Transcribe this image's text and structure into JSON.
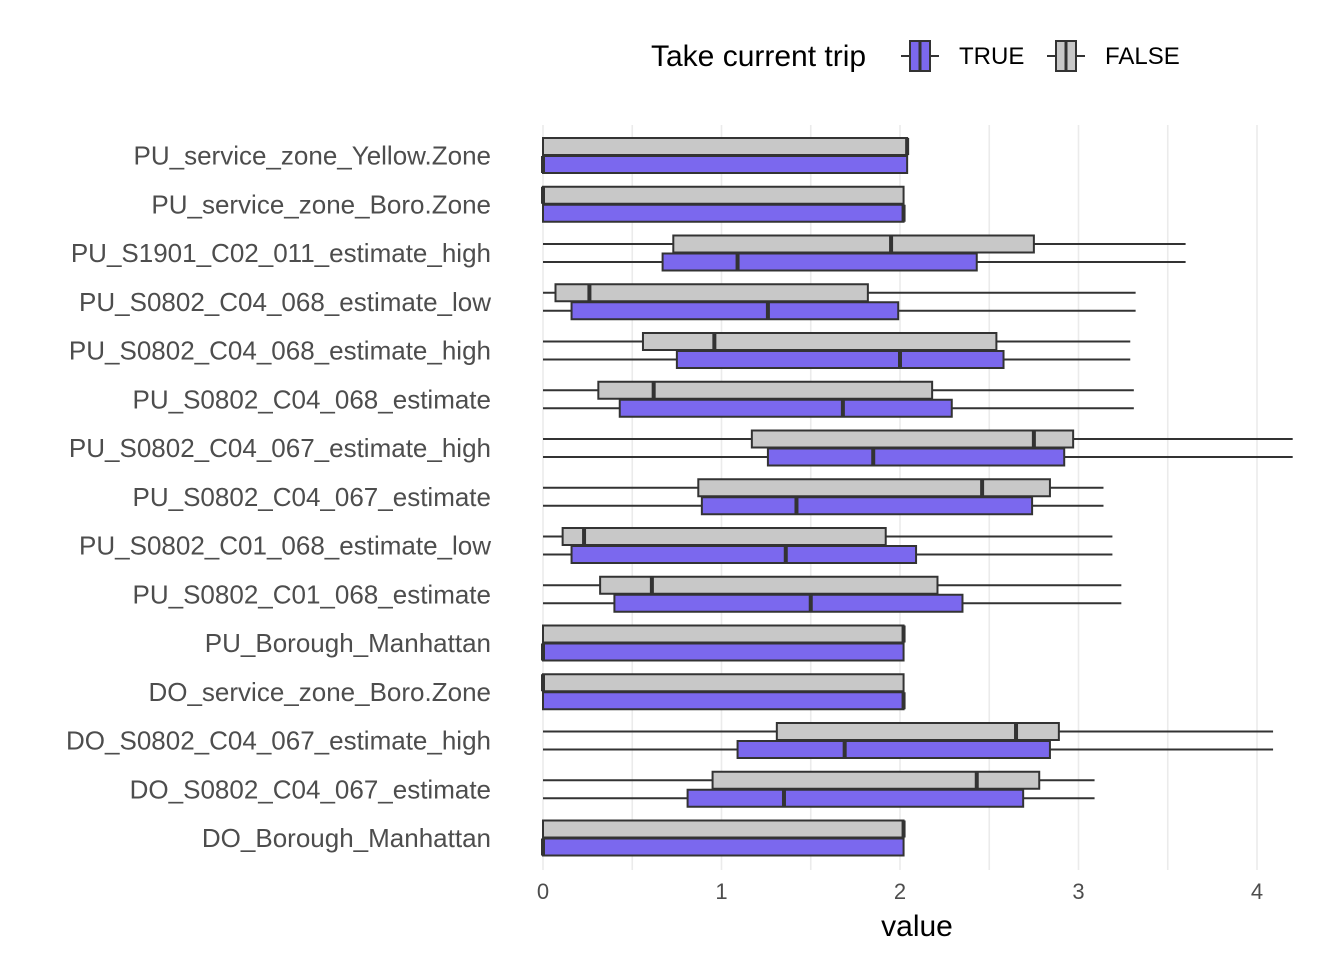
{
  "chart_data": {
    "type": "boxplot",
    "orientation": "horizontal",
    "xlabel": "value",
    "xlim": [
      0,
      4.2
    ],
    "x_ticks": [
      "0",
      "1",
      "2",
      "3",
      "4"
    ],
    "grid": "vertical major and minor lines",
    "legend": {
      "title": "Take current trip",
      "position": "top",
      "entries": [
        {
          "label": "TRUE",
          "color": "#7B68EE"
        },
        {
          "label": "FALSE",
          "color": "#C8C8C8"
        }
      ]
    },
    "categories": [
      "PU_service_zone_Yellow.Zone",
      "PU_service_zone_Boro.Zone",
      "PU_S1901_C02_011_estimate_high",
      "PU_S0802_C04_068_estimate_low",
      "PU_S0802_C04_068_estimate_high",
      "PU_S0802_C04_068_estimate",
      "PU_S0802_C04_067_estimate_high",
      "PU_S0802_C04_067_estimate",
      "PU_S0802_C01_068_estimate_low",
      "PU_S0802_C01_068_estimate",
      "PU_Borough_Manhattan",
      "DO_service_zone_Boro.Zone",
      "DO_S0802_C04_067_estimate_high",
      "DO_S0802_C04_067_estimate",
      "DO_Borough_Manhattan"
    ],
    "series": [
      {
        "name": "FALSE",
        "color": "#C8C8C8",
        "boxes": [
          {
            "min": 0.0,
            "q1": 0.0,
            "median": 2.04,
            "q3": 2.04,
            "max": 2.04
          },
          {
            "min": 0.0,
            "q1": 0.0,
            "median": 0.0,
            "q3": 2.02,
            "max": 2.02
          },
          {
            "min": 0.0,
            "q1": 0.73,
            "median": 1.95,
            "q3": 2.75,
            "max": 3.6
          },
          {
            "min": 0.0,
            "q1": 0.07,
            "median": 0.26,
            "q3": 1.82,
            "max": 3.32
          },
          {
            "min": 0.0,
            "q1": 0.56,
            "median": 0.96,
            "q3": 2.54,
            "max": 3.29
          },
          {
            "min": 0.0,
            "q1": 0.31,
            "median": 0.62,
            "q3": 2.18,
            "max": 3.31
          },
          {
            "min": 0.0,
            "q1": 1.17,
            "median": 2.75,
            "q3": 2.97,
            "max": 4.2
          },
          {
            "min": 0.0,
            "q1": 0.87,
            "median": 2.46,
            "q3": 2.84,
            "max": 3.14
          },
          {
            "min": 0.0,
            "q1": 0.11,
            "median": 0.23,
            "q3": 1.92,
            "max": 3.19
          },
          {
            "min": 0.0,
            "q1": 0.32,
            "median": 0.61,
            "q3": 2.21,
            "max": 3.24
          },
          {
            "min": 0.0,
            "q1": 0.0,
            "median": 2.02,
            "q3": 2.02,
            "max": 2.02
          },
          {
            "min": 0.0,
            "q1": 0.0,
            "median": 0.0,
            "q3": 2.02,
            "max": 2.02
          },
          {
            "min": 0.0,
            "q1": 1.31,
            "median": 2.65,
            "q3": 2.89,
            "max": 4.09
          },
          {
            "min": 0.0,
            "q1": 0.95,
            "median": 2.43,
            "q3": 2.78,
            "max": 3.09
          },
          {
            "min": 0.0,
            "q1": 0.0,
            "median": 2.02,
            "q3": 2.02,
            "max": 2.02
          }
        ]
      },
      {
        "name": "TRUE",
        "color": "#7B68EE",
        "boxes": [
          {
            "min": 0.0,
            "q1": 0.0,
            "median": 0.0,
            "q3": 2.04,
            "max": 2.04
          },
          {
            "min": 0.0,
            "q1": 0.0,
            "median": 2.02,
            "q3": 2.02,
            "max": 2.02
          },
          {
            "min": 0.0,
            "q1": 0.67,
            "median": 1.09,
            "q3": 2.43,
            "max": 3.6
          },
          {
            "min": 0.0,
            "q1": 0.16,
            "median": 1.26,
            "q3": 1.99,
            "max": 3.32
          },
          {
            "min": 0.0,
            "q1": 0.75,
            "median": 2.0,
            "q3": 2.58,
            "max": 3.29
          },
          {
            "min": 0.0,
            "q1": 0.43,
            "median": 1.68,
            "q3": 2.29,
            "max": 3.31
          },
          {
            "min": 0.0,
            "q1": 1.26,
            "median": 1.85,
            "q3": 2.92,
            "max": 4.2
          },
          {
            "min": 0.0,
            "q1": 0.89,
            "median": 1.42,
            "q3": 2.74,
            "max": 3.14
          },
          {
            "min": 0.0,
            "q1": 0.16,
            "median": 1.36,
            "q3": 2.09,
            "max": 3.19
          },
          {
            "min": 0.0,
            "q1": 0.4,
            "median": 1.5,
            "q3": 2.35,
            "max": 3.24
          },
          {
            "min": 0.0,
            "q1": 0.0,
            "median": 0.0,
            "q3": 2.02,
            "max": 2.02
          },
          {
            "min": 0.0,
            "q1": 0.0,
            "median": 2.02,
            "q3": 2.02,
            "max": 2.02
          },
          {
            "min": 0.0,
            "q1": 1.09,
            "median": 1.69,
            "q3": 2.84,
            "max": 4.09
          },
          {
            "min": 0.0,
            "q1": 0.81,
            "median": 1.35,
            "q3": 2.69,
            "max": 3.09
          },
          {
            "min": 0.0,
            "q1": 0.0,
            "median": 0.0,
            "q3": 2.02,
            "max": 2.02
          }
        ]
      }
    ]
  }
}
